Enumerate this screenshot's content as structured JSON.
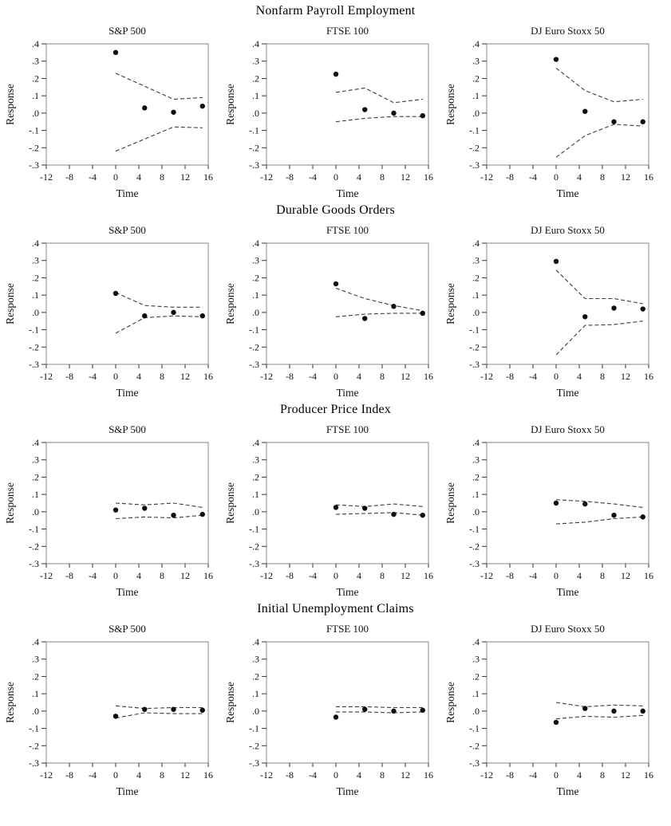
{
  "figure": {
    "ylabel": "Response",
    "xlabel": "Time",
    "y_ticks": [
      ".4",
      ".3",
      ".2",
      ".1",
      ".0",
      "-.1",
      "-.2",
      "-.3"
    ],
    "y_tick_values": [
      0.4,
      0.3,
      0.2,
      0.1,
      0.0,
      -0.1,
      -0.2,
      -0.3
    ],
    "x_ticks": [
      "-12",
      "-8",
      "-4",
      "0",
      "4",
      "8",
      "12",
      "16"
    ],
    "x_tick_values": [
      -12,
      -8,
      -4,
      0,
      4,
      8,
      12,
      16
    ],
    "xlim": [
      -12,
      16
    ],
    "ylim": [
      -0.3,
      0.4
    ],
    "row_titles": [
      "Nonfarm Payroll Employment",
      "Durable Goods Orders",
      "Producer Price Index",
      "Initial Unemployment Claims"
    ],
    "column_titles": [
      "S&P 500",
      "FTSE 100",
      "DJ Euro Stoxx 50"
    ],
    "colors": {
      "point": "#0d0d0d",
      "band": "#3c3c3c",
      "frame": "#8a8a8a",
      "frame_top": "#bdbdbd",
      "tick": "#333333",
      "text": "#111111",
      "background": "#ffffff"
    }
  },
  "chart_data": [
    {
      "type": "scatter",
      "row_title": "Nonfarm Payroll Employment",
      "title": "S&P 500",
      "xlabel": "Time",
      "ylabel": "Response",
      "xlim": [
        -12,
        16
      ],
      "ylim": [
        -0.3,
        0.4
      ],
      "x": [
        0,
        5,
        10,
        15
      ],
      "response": [
        0.35,
        0.03,
        0.005,
        0.04
      ],
      "upper_band": [
        0.23,
        0.155,
        0.08,
        0.09
      ],
      "lower_band": [
        -0.22,
        -0.15,
        -0.08,
        -0.085
      ]
    },
    {
      "type": "scatter",
      "row_title": "Nonfarm Payroll Employment",
      "title": "FTSE 100",
      "xlabel": "Time",
      "ylabel": "Response",
      "xlim": [
        -12,
        16
      ],
      "ylim": [
        -0.3,
        0.4
      ],
      "x": [
        0,
        5,
        10,
        15
      ],
      "response": [
        0.225,
        0.02,
        0.0,
        -0.015
      ],
      "upper_band": [
        0.12,
        0.145,
        0.06,
        0.08
      ],
      "lower_band": [
        -0.05,
        -0.03,
        -0.02,
        -0.02
      ]
    },
    {
      "type": "scatter",
      "row_title": "Nonfarm Payroll Employment",
      "title": "DJ Euro Stoxx 50",
      "xlabel": "Time",
      "ylabel": "Response",
      "xlim": [
        -12,
        16
      ],
      "ylim": [
        -0.3,
        0.4
      ],
      "x": [
        0,
        5,
        10,
        15
      ],
      "response": [
        0.31,
        0.01,
        -0.05,
        -0.05
      ],
      "upper_band": [
        0.26,
        0.13,
        0.065,
        0.08
      ],
      "lower_band": [
        -0.255,
        -0.13,
        -0.065,
        -0.075
      ]
    },
    {
      "type": "scatter",
      "row_title": "Durable Goods Orders",
      "title": "S&P 500",
      "xlabel": "Time",
      "ylabel": "Response",
      "xlim": [
        -12,
        16
      ],
      "ylim": [
        -0.3,
        0.4
      ],
      "x": [
        0,
        5,
        10,
        15
      ],
      "response": [
        0.11,
        -0.02,
        0.0,
        -0.02
      ],
      "upper_band": [
        0.115,
        0.04,
        0.03,
        0.03
      ],
      "lower_band": [
        -0.12,
        -0.03,
        -0.02,
        -0.025
      ]
    },
    {
      "type": "scatter",
      "row_title": "Durable Goods Orders",
      "title": "FTSE 100",
      "xlabel": "Time",
      "ylabel": "Response",
      "xlim": [
        -12,
        16
      ],
      "ylim": [
        -0.3,
        0.4
      ],
      "x": [
        0,
        5,
        10,
        15
      ],
      "response": [
        0.165,
        -0.035,
        0.035,
        -0.005
      ],
      "upper_band": [
        0.14,
        0.08,
        0.04,
        0.01
      ],
      "lower_band": [
        -0.025,
        -0.01,
        -0.005,
        -0.005
      ]
    },
    {
      "type": "scatter",
      "row_title": "Durable Goods Orders",
      "title": "DJ Euro Stoxx 50",
      "xlabel": "Time",
      "ylabel": "Response",
      "xlim": [
        -12,
        16
      ],
      "ylim": [
        -0.3,
        0.4
      ],
      "x": [
        0,
        5,
        10,
        15
      ],
      "response": [
        0.295,
        -0.025,
        0.025,
        0.02
      ],
      "upper_band": [
        0.245,
        0.08,
        0.08,
        0.05
      ],
      "lower_band": [
        -0.245,
        -0.075,
        -0.07,
        -0.05
      ]
    },
    {
      "type": "scatter",
      "row_title": "Producer Price Index",
      "title": "S&P 500",
      "xlabel": "Time",
      "ylabel": "Response",
      "xlim": [
        -12,
        16
      ],
      "ylim": [
        -0.3,
        0.4
      ],
      "x": [
        0,
        5,
        10,
        15
      ],
      "response": [
        0.01,
        0.02,
        -0.02,
        -0.015
      ],
      "upper_band": [
        0.05,
        0.04,
        0.05,
        0.025
      ],
      "lower_band": [
        -0.04,
        -0.03,
        -0.035,
        -0.02
      ]
    },
    {
      "type": "scatter",
      "row_title": "Producer Price Index",
      "title": "FTSE 100",
      "xlabel": "Time",
      "ylabel": "Response",
      "xlim": [
        -12,
        16
      ],
      "ylim": [
        -0.3,
        0.4
      ],
      "x": [
        0,
        5,
        10,
        15
      ],
      "response": [
        0.025,
        0.02,
        -0.015,
        -0.02
      ],
      "upper_band": [
        0.04,
        0.03,
        0.045,
        0.03
      ],
      "lower_band": [
        -0.015,
        -0.01,
        -0.005,
        -0.02
      ]
    },
    {
      "type": "scatter",
      "row_title": "Producer Price Index",
      "title": "DJ Euro Stoxx 50",
      "xlabel": "Time",
      "ylabel": "Response",
      "xlim": [
        -12,
        16
      ],
      "ylim": [
        -0.3,
        0.4
      ],
      "x": [
        0,
        5,
        10,
        15
      ],
      "response": [
        0.05,
        0.045,
        -0.02,
        -0.03
      ],
      "upper_band": [
        0.07,
        0.06,
        0.045,
        0.025
      ],
      "lower_band": [
        -0.07,
        -0.06,
        -0.04,
        -0.03
      ]
    },
    {
      "type": "scatter",
      "row_title": "Initial Unemployment Claims",
      "title": "S&P 500",
      "xlabel": "Time",
      "ylabel": "Response",
      "xlim": [
        -12,
        16
      ],
      "ylim": [
        -0.3,
        0.4
      ],
      "x": [
        0,
        5,
        10,
        15
      ],
      "response": [
        -0.03,
        0.01,
        0.01,
        0.005
      ],
      "upper_band": [
        0.03,
        0.015,
        0.02,
        0.02
      ],
      "lower_band": [
        -0.04,
        -0.01,
        -0.015,
        -0.015
      ]
    },
    {
      "type": "scatter",
      "row_title": "Initial Unemployment Claims",
      "title": "FTSE 100",
      "xlabel": "Time",
      "ylabel": "Response",
      "xlim": [
        -12,
        16
      ],
      "ylim": [
        -0.3,
        0.4
      ],
      "x": [
        0,
        5,
        10,
        15
      ],
      "response": [
        -0.035,
        0.01,
        0.0,
        0.005
      ],
      "upper_band": [
        0.025,
        0.025,
        0.02,
        0.02
      ],
      "lower_band": [
        -0.005,
        -0.005,
        -0.01,
        -0.005
      ]
    },
    {
      "type": "scatter",
      "row_title": "Initial Unemployment Claims",
      "title": "DJ Euro Stoxx 50",
      "xlabel": "Time",
      "ylabel": "Response",
      "xlim": [
        -12,
        16
      ],
      "ylim": [
        -0.3,
        0.4
      ],
      "x": [
        0,
        5,
        10,
        15
      ],
      "response": [
        -0.065,
        0.015,
        0.0,
        0.0
      ],
      "upper_band": [
        0.05,
        0.025,
        0.035,
        0.03
      ],
      "lower_band": [
        -0.045,
        -0.03,
        -0.035,
        -0.025
      ]
    }
  ]
}
